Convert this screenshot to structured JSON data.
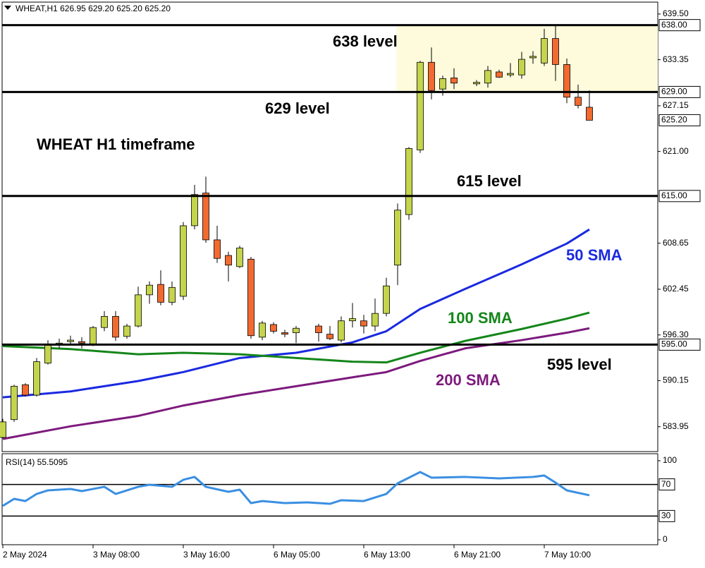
{
  "chart_data": [
    {
      "type": "candlestick",
      "title": "WHEAT,H1  626.95 629.20 625.20 625.20",
      "annotation": "WHEAT H1 timeframe",
      "up_color": "#c4d44c",
      "down_color": "#f26a30",
      "open": [
        582.5,
        584.9,
        589.6,
        588.2,
        592.5,
        595.0,
        595.4,
        595.4,
        595.1,
        597.3,
        598.8,
        596.1,
        597.5,
        601.7,
        603.1,
        600.7,
        601.5,
        611.0,
        615.4,
        609.1,
        607.0,
        605.5,
        606.5,
        596.0,
        597.7,
        596.6,
        596.6,
        null,
        597.5,
        596.4,
        595.6,
        598.2,
        598.2,
        597.5,
        599.2,
        605.7,
        612.5,
        621.2,
        633.0,
        629.4,
        630.9,
        null,
        630.1,
        630.2,
        631.7,
        631.3,
        631.3,
        633.6,
        632.9,
        636.2,
        632.7,
        628.3,
        626.95
      ],
      "high": [
        585.0,
        589.6,
        589.8,
        593.2,
        595.6,
        595.8,
        596.2,
        596.0,
        597.5,
        599.5,
        599.5,
        597.8,
        602.8,
        603.5,
        605.0,
        603.5,
        611.5,
        616.5,
        617.6,
        611.0,
        607.5,
        608.3,
        606.8,
        598.2,
        598.0,
        597.0,
        597.5,
        null,
        597.8,
        597.5,
        598.8,
        600.6,
        599.0,
        601.2,
        604.0,
        614.0,
        621.6,
        633.2,
        635.0,
        631.2,
        632.2,
        null,
        630.6,
        632.5,
        632.0,
        632.9,
        634.4,
        634.5,
        637.5,
        638.0,
        633.5,
        630.0,
        629.2
      ],
      "low": [
        582.4,
        584.6,
        588.0,
        588.0,
        592.3,
        594.5,
        595.0,
        594.5,
        594.8,
        596.8,
        595.5,
        595.8,
        597.3,
        600.5,
        600.3,
        600.3,
        601.0,
        610.5,
        608.7,
        606.0,
        603.5,
        605.3,
        595.8,
        595.6,
        596.5,
        596.0,
        595.2,
        null,
        595.4,
        595.6,
        595.3,
        597.3,
        596.5,
        596.8,
        598.8,
        603.0,
        611.8,
        620.8,
        628.0,
        628.5,
        629.4,
        null,
        629.8,
        629.6,
        630.9,
        631.0,
        630.8,
        632.8,
        632.5,
        630.5,
        627.5,
        626.8,
        625.2
      ],
      "close": [
        584.6,
        589.4,
        588.2,
        592.7,
        595.0,
        595.2,
        595.6,
        595.2,
        597.3,
        598.8,
        596.0,
        597.5,
        601.7,
        603.0,
        600.7,
        602.7,
        611.0,
        615.2,
        609.1,
        606.6,
        605.7,
        608.0,
        596.2,
        597.9,
        596.8,
        596.4,
        597.2,
        null,
        596.6,
        595.8,
        598.2,
        598.5,
        597.5,
        599.2,
        602.9,
        613.1,
        621.4,
        633.0,
        629.2,
        630.8,
        630.2,
        null,
        630.3,
        631.9,
        631.0,
        631.5,
        633.4,
        633.8,
        636.2,
        632.7,
        628.3,
        627.2,
        625.2
      ],
      "series": [
        {
          "name": "50 SMA",
          "color": "#1a2ae0",
          "x": [
            0,
            6,
            12,
            16,
            21,
            26,
            31,
            34,
            37,
            41,
            46,
            50,
            52
          ],
          "values": [
            587.9,
            588.7,
            590.1,
            591.3,
            593.2,
            593.9,
            595.3,
            596.8,
            599.8,
            602.5,
            605.8,
            608.6,
            610.5
          ]
        },
        {
          "name": "100 SMA",
          "color": "#14861a",
          "x": [
            0,
            6,
            12,
            16,
            21,
            26,
            31,
            34,
            37,
            41,
            46,
            50,
            52
          ],
          "values": [
            594.8,
            594.4,
            593.7,
            593.9,
            593.7,
            593.2,
            592.7,
            592.6,
            593.9,
            595.5,
            597.1,
            598.5,
            599.3
          ]
        },
        {
          "name": "200 SMA",
          "color": "#7d1a7d",
          "x": [
            0,
            6,
            12,
            16,
            21,
            26,
            31,
            34,
            37,
            41,
            46,
            50,
            52
          ],
          "values": [
            582.3,
            584.0,
            585.4,
            586.8,
            588.2,
            589.4,
            590.6,
            591.3,
            592.8,
            594.5,
            595.6,
            596.6,
            597.2
          ]
        }
      ],
      "levels": [
        {
          "value": 638,
          "label": "638.00",
          "text": "638 level"
        },
        {
          "value": 629,
          "label": "629.00",
          "text": "629 level"
        },
        {
          "value": 615,
          "label": "615.00",
          "text": "615 level"
        },
        {
          "value": 595,
          "label": "595.00",
          "text": "595 level"
        }
      ],
      "zone": {
        "ymin": 629,
        "ymax": 638,
        "xmin": 34.9,
        "color": "#fdfbdc"
      },
      "price_label": {
        "value": 625.2,
        "label": "625.20"
      },
      "ylim": [
        580.6,
        641.1
      ],
      "yticks": [
        {
          "value": 639.5,
          "label": "639.50"
        },
        {
          "value": 633.35,
          "label": "633.35"
        },
        {
          "value": 627.15,
          "label": "627.15"
        },
        {
          "value": 621,
          "label": "621.00"
        },
        {
          "value": 608.65,
          "label": "608.65"
        },
        {
          "value": 602.45,
          "label": "602.45"
        },
        {
          "value": 596.3,
          "label": "596.30"
        },
        {
          "value": 590.15,
          "label": "590.15"
        },
        {
          "value": 583.95,
          "label": "583.95"
        }
      ],
      "xticks": [
        {
          "value": 0,
          "label": "2 May 2024"
        },
        {
          "value": 8,
          "label": "3 May 08:00"
        },
        {
          "value": 16,
          "label": "3 May 16:00"
        },
        {
          "value": 24,
          "label": "6 May 05:00"
        },
        {
          "value": 32,
          "label": "6 May 13:00"
        },
        {
          "value": 40,
          "label": "6 May 21:00"
        },
        {
          "value": 48,
          "label": "7 May 10:00"
        }
      ]
    },
    {
      "type": "line",
      "title": "RSI(14) 55.5095",
      "series": [
        {
          "name": "RSI",
          "color": "#3a8fe2",
          "x": [
            0,
            1,
            2,
            3,
            4,
            6,
            7,
            9,
            10,
            12,
            13,
            15,
            16,
            17,
            18,
            20,
            21,
            22,
            23,
            25,
            27,
            29,
            30,
            32,
            34,
            35,
            37,
            38,
            41,
            44,
            47,
            48,
            49,
            50,
            52
          ],
          "values": [
            42.9,
            51.8,
            49,
            58,
            62.5,
            64.3,
            61.6,
            67,
            58,
            67,
            69.6,
            67,
            75.9,
            79.5,
            67,
            60.7,
            63.4,
            46.4,
            49,
            46.4,
            47.3,
            45.5,
            50,
            49,
            58,
            71.4,
            85.7,
            78.6,
            79.5,
            77.7,
            79.5,
            81.3,
            72.3,
            62.5,
            56.3
          ]
        }
      ],
      "levels": [
        70,
        30
      ],
      "ylim": [
        -6.25,
        108.9
      ],
      "yticks": [
        100,
        0
      ]
    }
  ]
}
